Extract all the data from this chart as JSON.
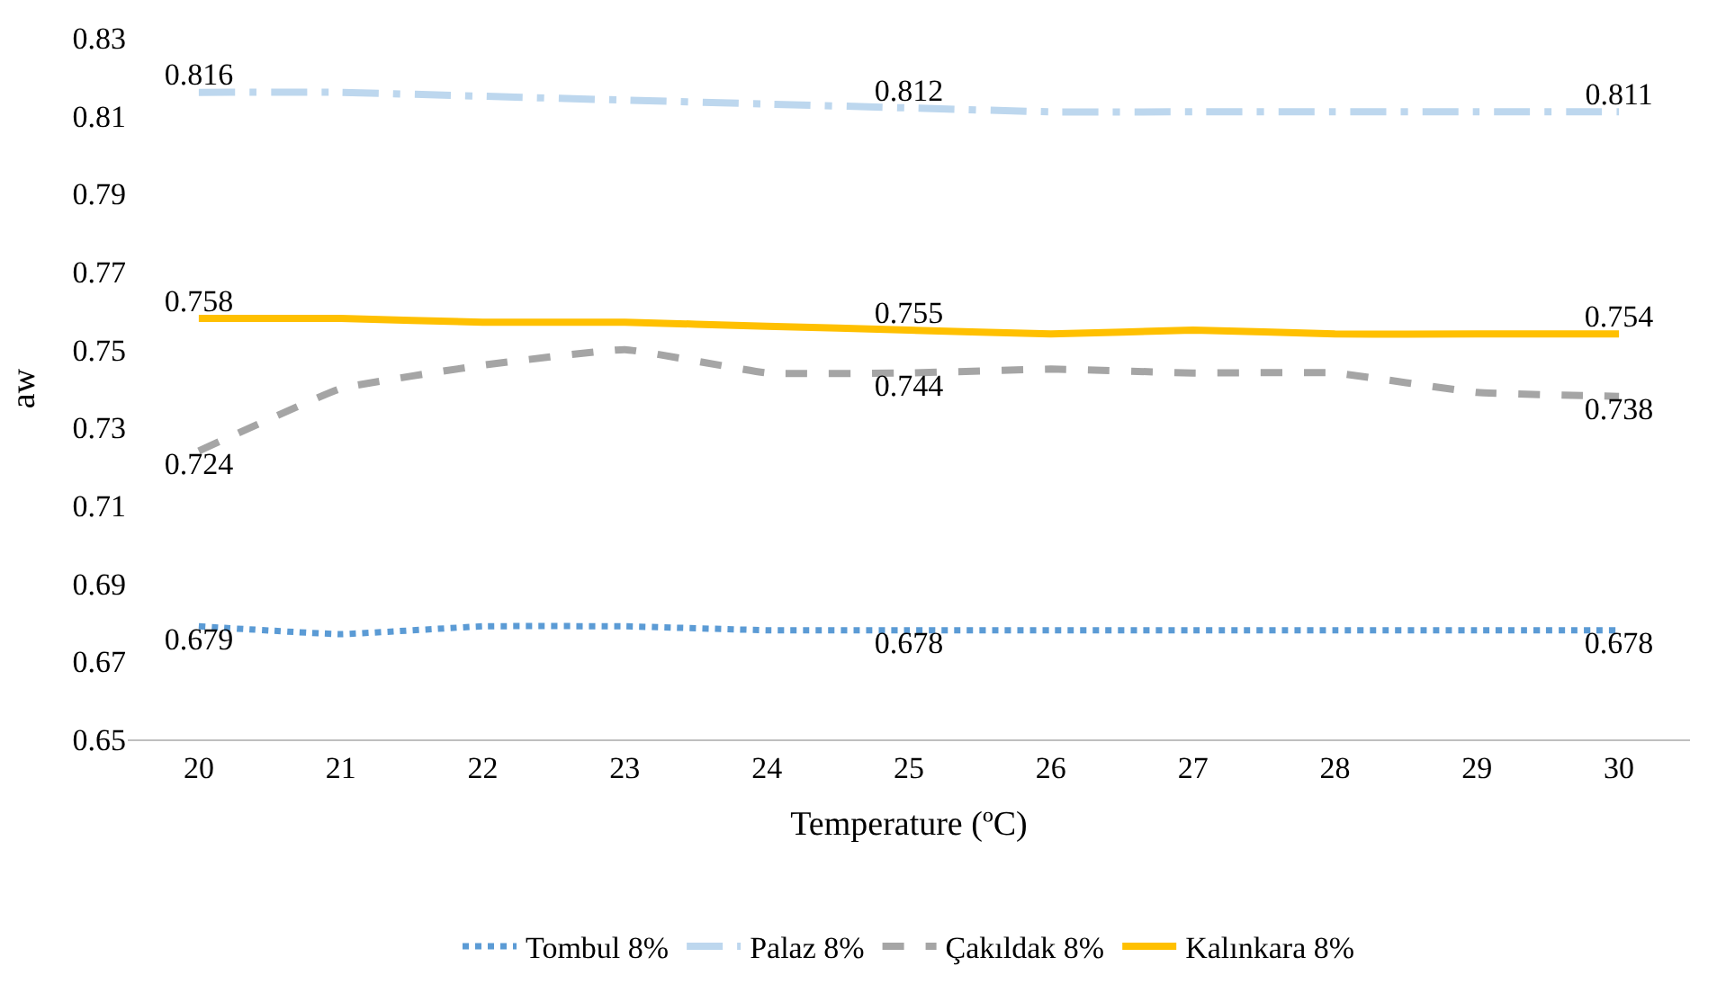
{
  "chart_data": {
    "type": "line",
    "xlabel": "Temperature (ºC)",
    "ylabel": "aw",
    "x": [
      20,
      21,
      22,
      23,
      24,
      25,
      26,
      27,
      28,
      29,
      30
    ],
    "xlim": [
      19.5,
      30.5
    ],
    "xticks": [
      20,
      21,
      22,
      23,
      24,
      25,
      26,
      27,
      28,
      29,
      30
    ],
    "ylim": [
      0.65,
      0.83
    ],
    "yticks": [
      0.65,
      0.67,
      0.69,
      0.71,
      0.73,
      0.75,
      0.77,
      0.79,
      0.81,
      0.83
    ],
    "grid": false,
    "legend": "bottom",
    "marker": "none",
    "series": [
      {
        "name": "Tombul 8%",
        "color": "#5b9bd5",
        "line_style": "dotted",
        "values": [
          0.679,
          0.677,
          0.679,
          0.679,
          0.678,
          0.678,
          0.678,
          0.678,
          0.678,
          0.678,
          0.678
        ],
        "value_labels": [
          "0.679",
          null,
          null,
          null,
          null,
          "0.678",
          null,
          null,
          null,
          null,
          "0.678"
        ]
      },
      {
        "name": "Palaz 8%",
        "color": "#bdd7ee",
        "line_style": "dashdot",
        "values": [
          0.816,
          0.816,
          0.815,
          0.814,
          0.813,
          0.812,
          0.811,
          0.811,
          0.811,
          0.811,
          0.811
        ],
        "value_labels": [
          "0.816",
          null,
          null,
          null,
          null,
          "0.812",
          null,
          null,
          null,
          null,
          "0.811"
        ]
      },
      {
        "name": "Çakıldak 8%",
        "color": "#a5a5a5",
        "line_style": "dashed",
        "values": [
          0.724,
          0.74,
          0.746,
          0.75,
          0.744,
          0.744,
          0.745,
          0.744,
          0.744,
          0.739,
          0.738
        ],
        "value_labels": [
          "0.724",
          null,
          null,
          null,
          null,
          "0.744",
          null,
          null,
          null,
          null,
          "0.738"
        ]
      },
      {
        "name": "Kalınkara 8%",
        "color": "#ffc000",
        "line_style": "solid",
        "values": [
          0.758,
          0.758,
          0.757,
          0.757,
          0.756,
          0.755,
          0.754,
          0.755,
          0.754,
          0.754,
          0.754
        ],
        "value_labels": [
          "0.758",
          null,
          null,
          null,
          null,
          "0.755",
          null,
          null,
          null,
          null,
          "0.754"
        ]
      }
    ]
  }
}
